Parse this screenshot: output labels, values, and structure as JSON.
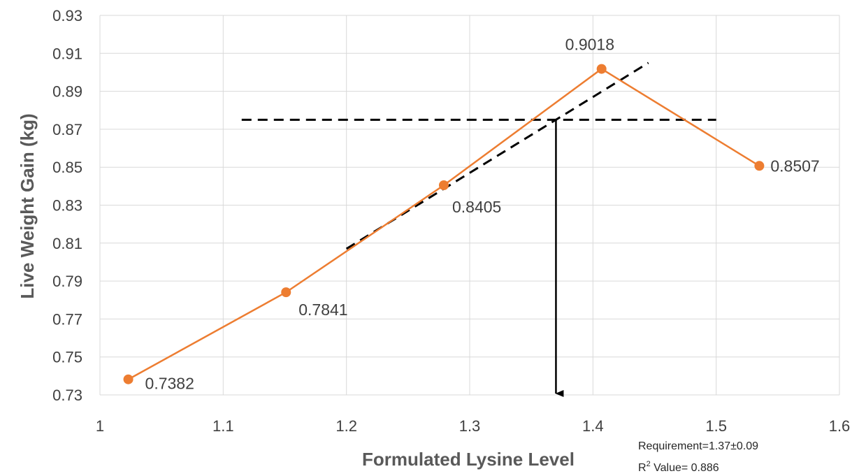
{
  "chart_data": {
    "type": "line",
    "xlabel": "Formulated Lysine Level",
    "ylabel": "Live Weight Gain (kg)",
    "xlim": [
      1,
      1.6
    ],
    "ylim": [
      0.73,
      0.93
    ],
    "x_ticks": [
      1,
      1.1,
      1.2,
      1.3,
      1.4,
      1.5,
      1.6
    ],
    "x_tick_labels": [
      "1",
      "1.1",
      "1.2",
      "1.3",
      "1.4",
      "1.5",
      "1.6"
    ],
    "y_ticks": [
      0.73,
      0.75,
      0.77,
      0.79,
      0.81,
      0.83,
      0.85,
      0.87,
      0.89,
      0.91,
      0.93
    ],
    "y_tick_labels": [
      "0.73",
      "0.75",
      "0.77",
      "0.79",
      "0.81",
      "0.83",
      "0.85",
      "0.87",
      "0.89",
      "0.91",
      "0.93"
    ],
    "grid": true,
    "series": [
      {
        "x": [
          1.023,
          1.151,
          1.279,
          1.407,
          1.535
        ],
        "values": [
          0.7382,
          0.7841,
          0.8405,
          0.9018,
          0.8507
        ],
        "labels": [
          "0.7382",
          "0.7841",
          "0.8405",
          "0.9018",
          "0.8507"
        ],
        "color": "#ED7D31"
      }
    ],
    "reference_lines": {
      "plateau": {
        "x": [
          1.115,
          1.5
        ],
        "y": [
          0.875,
          0.875
        ],
        "style": "dashed",
        "color": "#000000"
      },
      "regression": {
        "x": [
          1.2,
          1.445
        ],
        "y": [
          0.807,
          0.905
        ],
        "style": "dashed",
        "color": "#000000"
      },
      "requirement_arrow": {
        "x": 1.37,
        "y": [
          0.875,
          0.73
        ],
        "color": "#000000"
      }
    },
    "annotations": {
      "requirement": "Requirement=1.37±0.09",
      "r2_prefix": "R",
      "r2_sup": "2",
      "r2_suffix": " Value= 0.886"
    },
    "colors": {
      "series": "#ED7D31",
      "grid": "#D9D9D9",
      "reference": "#000000"
    }
  }
}
